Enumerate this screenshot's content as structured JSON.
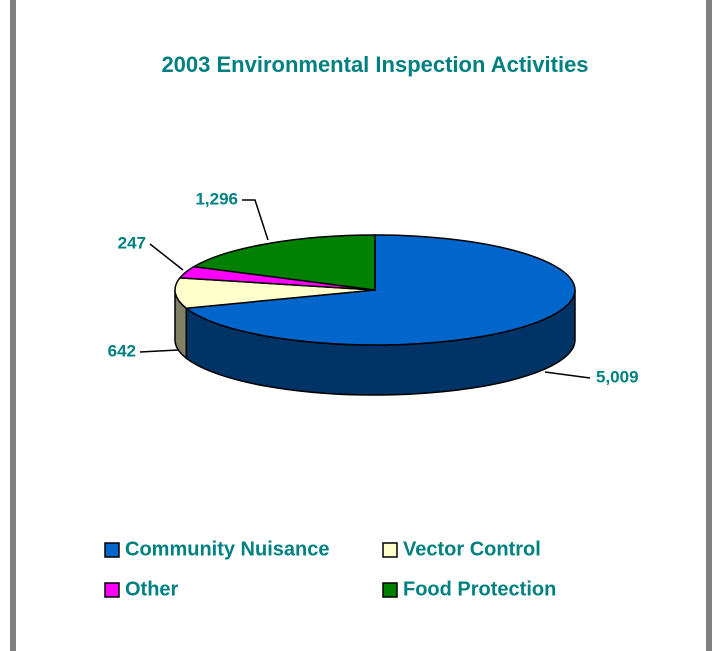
{
  "chart_data": {
    "type": "pie3d",
    "title": "2003 Environmental Inspection Activities",
    "categories": [
      "Community Nuisance",
      "Vector Control",
      "Other",
      "Food Protection"
    ],
    "values": [
      5009,
      642,
      247,
      1296
    ],
    "value_labels": [
      "5,009",
      "642",
      "247",
      "1,296"
    ],
    "colors": [
      "#0066cc",
      "#ffffcc",
      "#ff00ff",
      "#008000"
    ],
    "legend": "bottom"
  }
}
